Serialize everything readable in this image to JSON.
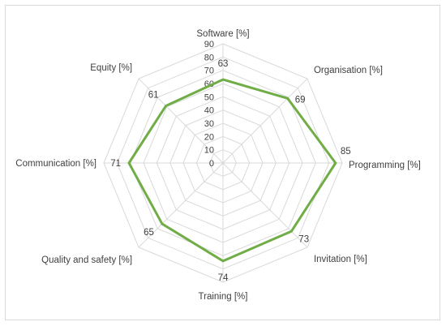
{
  "chart_data": {
    "type": "radar",
    "categories": [
      "Software [%]",
      "Organisation [%]",
      "Programming [%]",
      "Invitation [%]",
      "Training [%]",
      "Quality and safety [%]",
      "Communication [%]",
      "Equity [%]"
    ],
    "values": [
      63,
      69,
      85,
      73,
      74,
      65,
      71,
      61
    ],
    "rlim": [
      0,
      90
    ],
    "ticks": [
      0,
      10,
      20,
      30,
      40,
      50,
      60,
      70,
      80,
      90
    ],
    "grid": true,
    "legend": false,
    "series_color": "#70ad47",
    "grid_color": "#d9d9d9"
  }
}
